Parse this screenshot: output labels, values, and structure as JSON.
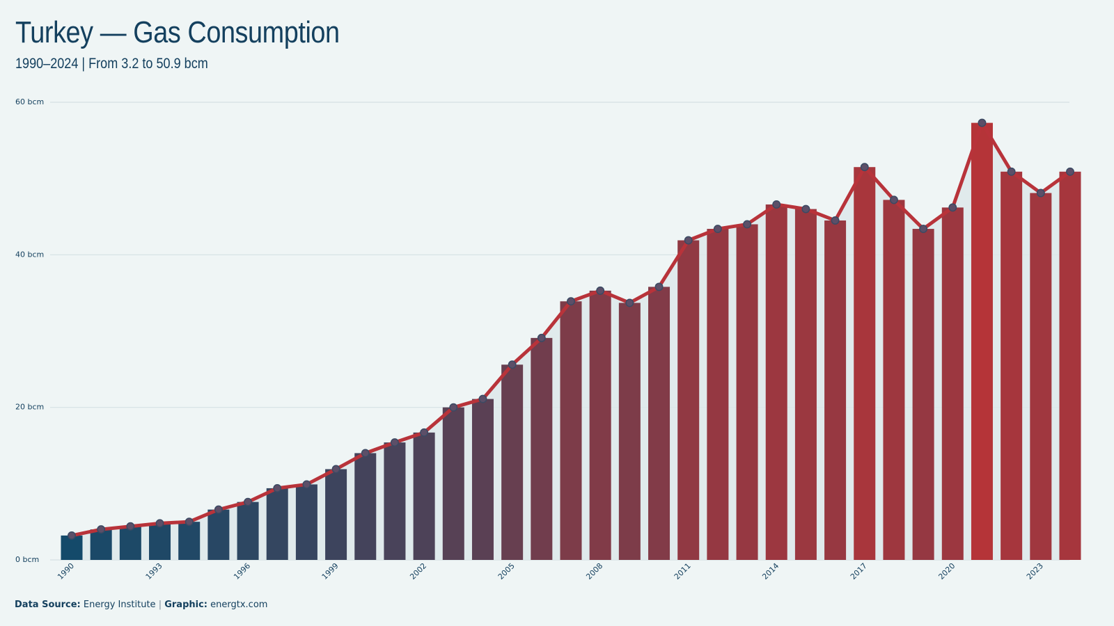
{
  "title": "Turkey — Gas Consumption",
  "subtitle": "1990–2024 | From 3.2 to 50.9 bcm",
  "footer": {
    "source_label": "Data Source:",
    "source_value": "Energy Institute",
    "separator": "|",
    "graphic_label": "Graphic:",
    "graphic_value": "energtx.com"
  },
  "colors": {
    "background": "#eff5f5",
    "bar_start": "#144a6a",
    "bar_end": "#b53438",
    "line": "#b8333a",
    "marker_fill": "#5c4f68",
    "marker_stroke": "#3b4a63",
    "gridline": "#d5e1e3",
    "area_fill": "#dde7ea",
    "text": "#14405e"
  },
  "chart_data": {
    "type": "bar",
    "overlay": "line-with-markers",
    "unit": "bcm",
    "x": [
      1990,
      1991,
      1992,
      1993,
      1994,
      1995,
      1996,
      1997,
      1998,
      1999,
      2000,
      2001,
      2002,
      2003,
      2004,
      2005,
      2006,
      2007,
      2008,
      2009,
      2010,
      2011,
      2012,
      2013,
      2014,
      2015,
      2016,
      2017,
      2018,
      2019,
      2020,
      2021,
      2022,
      2023,
      2024
    ],
    "values": [
      3.2,
      4.0,
      4.4,
      4.8,
      5.0,
      6.6,
      7.6,
      9.4,
      9.9,
      11.9,
      14.0,
      15.4,
      16.7,
      20.0,
      21.1,
      25.6,
      29.1,
      33.9,
      35.3,
      33.7,
      35.8,
      41.9,
      43.4,
      44.0,
      46.6,
      46.0,
      44.5,
      51.5,
      47.2,
      43.4,
      46.2,
      57.3,
      50.9,
      48.1,
      50.9
    ],
    "y_ticks": [
      0,
      20,
      40,
      60
    ],
    "y_tick_labels": [
      "0 bcm",
      "20 bcm",
      "40 bcm",
      "60 bcm"
    ],
    "x_tick_labels": [
      "1990",
      "1993",
      "1996",
      "1999",
      "2002",
      "2005",
      "2008",
      "2011",
      "2014",
      "2017",
      "2020",
      "2023"
    ],
    "ylim": [
      0,
      60
    ],
    "grid": "horizontal",
    "legend": "none"
  }
}
